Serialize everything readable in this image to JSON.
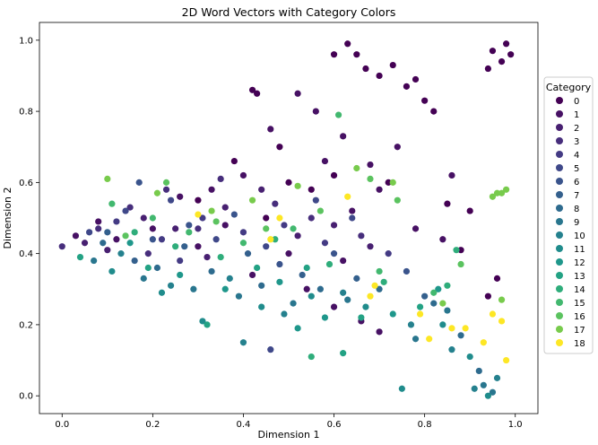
{
  "chart_data": {
    "type": "scatter",
    "title": "2D Word Vectors with Category Colors",
    "xlabel": "Dimension 1",
    "ylabel": "Dimension 2",
    "xlim": [
      -0.05,
      1.05
    ],
    "ylim": [
      -0.05,
      1.05
    ],
    "xticks": [
      "0.0",
      "0.2",
      "0.4",
      "0.6",
      "0.8",
      "1.0"
    ],
    "yticks": [
      "0.0",
      "0.2",
      "0.4",
      "0.6",
      "0.8",
      "1.0"
    ],
    "grid": false,
    "legend": {
      "title": "Category",
      "placement": "right-outside",
      "entries": [
        "0",
        "1",
        "2",
        "3",
        "4",
        "5",
        "6",
        "7",
        "8",
        "9",
        "10",
        "11",
        "12",
        "13",
        "14",
        "15",
        "16",
        "17",
        "18"
      ]
    },
    "colormap": [
      "#440154",
      "#471164",
      "#482071",
      "#472e7c",
      "#443b84",
      "#3f4889",
      "#3a548c",
      "#34608d",
      "#2e6b8e",
      "#29768e",
      "#25818e",
      "#208c8c",
      "#1f978b",
      "#23a284",
      "#2fad7b",
      "#42b86f",
      "#5bc35f",
      "#78cb4c",
      "#fde725"
    ],
    "series": [
      {
        "name": "0",
        "points": [
          [
            0.42,
            0.86
          ],
          [
            0.43,
            0.85
          ],
          [
            0.6,
            0.96
          ],
          [
            0.63,
            0.99
          ],
          [
            0.65,
            0.96
          ],
          [
            0.67,
            0.92
          ],
          [
            0.7,
            0.9
          ],
          [
            0.73,
            0.93
          ],
          [
            0.76,
            0.87
          ],
          [
            0.78,
            0.89
          ],
          [
            0.8,
            0.83
          ],
          [
            0.82,
            0.8
          ],
          [
            0.95,
            0.97
          ],
          [
            0.97,
            0.94
          ],
          [
            0.98,
            0.99
          ],
          [
            0.99,
            0.96
          ],
          [
            0.94,
            0.92
          ],
          [
            0.6,
            0.62
          ],
          [
            0.55,
            0.58
          ],
          [
            0.5,
            0.6
          ],
          [
            0.45,
            0.5
          ],
          [
            0.38,
            0.66
          ],
          [
            0.3,
            0.55
          ],
          [
            0.72,
            0.6
          ],
          [
            0.48,
            0.7
          ],
          [
            0.85,
            0.54
          ],
          [
            0.9,
            0.52
          ],
          [
            0.94,
            0.28
          ],
          [
            0.96,
            0.33
          ],
          [
            0.88,
            0.41
          ]
        ]
      },
      {
        "name": "1",
        "points": [
          [
            0.4,
            0.62
          ],
          [
            0.33,
            0.58
          ],
          [
            0.26,
            0.56
          ],
          [
            0.58,
            0.66
          ],
          [
            0.62,
            0.73
          ],
          [
            0.56,
            0.8
          ],
          [
            0.52,
            0.85
          ],
          [
            0.46,
            0.75
          ],
          [
            0.68,
            0.65
          ],
          [
            0.74,
            0.7
          ],
          [
            0.64,
            0.52
          ],
          [
            0.36,
            0.48
          ],
          [
            0.2,
            0.47
          ],
          [
            0.12,
            0.44
          ],
          [
            0.08,
            0.49
          ],
          [
            0.03,
            0.45
          ],
          [
            0.78,
            0.47
          ],
          [
            0.84,
            0.44
          ],
          [
            0.86,
            0.62
          ],
          [
            0.7,
            0.58
          ],
          [
            0.5,
            0.4
          ],
          [
            0.54,
            0.3
          ],
          [
            0.6,
            0.25
          ],
          [
            0.66,
            0.21
          ],
          [
            0.7,
            0.18
          ],
          [
            0.62,
            0.38
          ],
          [
            0.42,
            0.34
          ],
          [
            0.3,
            0.42
          ]
        ]
      },
      {
        "name": "2",
        "points": [
          [
            0.18,
            0.5
          ],
          [
            0.25,
            0.47
          ],
          [
            0.36,
            0.53
          ],
          [
            0.44,
            0.58
          ],
          [
            0.52,
            0.45
          ],
          [
            0.6,
            0.48
          ],
          [
            0.68,
            0.42
          ],
          [
            0.1,
            0.41
          ],
          [
            0.05,
            0.43
          ],
          [
            0.32,
            0.39
          ]
        ]
      },
      {
        "name": "3",
        "points": [
          [
            0.0,
            0.42
          ],
          [
            0.08,
            0.47
          ],
          [
            0.15,
            0.53
          ],
          [
            0.23,
            0.58
          ],
          [
            0.35,
            0.61
          ],
          [
            0.47,
            0.54
          ],
          [
            0.55,
            0.5
          ],
          [
            0.66,
            0.45
          ],
          [
            0.3,
            0.47
          ],
          [
            0.19,
            0.4
          ]
        ]
      },
      {
        "name": "4",
        "points": [
          [
            0.12,
            0.49
          ],
          [
            0.22,
            0.44
          ],
          [
            0.31,
            0.5
          ],
          [
            0.4,
            0.46
          ],
          [
            0.49,
            0.48
          ],
          [
            0.58,
            0.43
          ],
          [
            0.72,
            0.4
          ],
          [
            0.26,
            0.38
          ]
        ]
      },
      {
        "name": "5",
        "points": [
          [
            0.06,
            0.46
          ],
          [
            0.14,
            0.52
          ],
          [
            0.24,
            0.55
          ],
          [
            0.34,
            0.44
          ],
          [
            0.45,
            0.42
          ],
          [
            0.56,
            0.55
          ],
          [
            0.64,
            0.5
          ],
          [
            0.46,
            0.13
          ]
        ]
      },
      {
        "name": "6",
        "points": [
          [
            0.17,
            0.6
          ],
          [
            0.2,
            0.44
          ],
          [
            0.28,
            0.48
          ],
          [
            0.38,
            0.51
          ],
          [
            0.48,
            0.37
          ],
          [
            0.6,
            0.4
          ],
          [
            0.76,
            0.35
          ]
        ]
      },
      {
        "name": "7",
        "points": [
          [
            0.1,
            0.46
          ],
          [
            0.16,
            0.38
          ],
          [
            0.27,
            0.42
          ],
          [
            0.41,
            0.4
          ],
          [
            0.53,
            0.34
          ],
          [
            0.65,
            0.33
          ],
          [
            0.8,
            0.28
          ]
        ]
      },
      {
        "name": "8",
        "points": [
          [
            0.09,
            0.43
          ],
          [
            0.21,
            0.36
          ],
          [
            0.33,
            0.35
          ],
          [
            0.44,
            0.31
          ],
          [
            0.57,
            0.3
          ],
          [
            0.7,
            0.3
          ],
          [
            0.82,
            0.26
          ],
          [
            0.88,
            0.17
          ],
          [
            0.92,
            0.07
          ]
        ]
      },
      {
        "name": "9",
        "points": [
          [
            0.07,
            0.38
          ],
          [
            0.18,
            0.33
          ],
          [
            0.29,
            0.3
          ],
          [
            0.39,
            0.28
          ],
          [
            0.51,
            0.26
          ],
          [
            0.63,
            0.27
          ],
          [
            0.78,
            0.16
          ],
          [
            0.85,
            0.24
          ],
          [
            0.93,
            0.03
          ],
          [
            0.95,
            0.01
          ]
        ]
      },
      {
        "name": "10",
        "points": [
          [
            0.13,
            0.4
          ],
          [
            0.24,
            0.31
          ],
          [
            0.37,
            0.33
          ],
          [
            0.49,
            0.23
          ],
          [
            0.62,
            0.29
          ],
          [
            0.77,
            0.2
          ],
          [
            0.86,
            0.13
          ],
          [
            0.91,
            0.02
          ],
          [
            0.96,
            0.05
          ],
          [
            0.4,
            0.15
          ]
        ]
      },
      {
        "name": "11",
        "points": [
          [
            0.11,
            0.35
          ],
          [
            0.22,
            0.29
          ],
          [
            0.31,
            0.21
          ],
          [
            0.44,
            0.25
          ],
          [
            0.55,
            0.28
          ],
          [
            0.67,
            0.25
          ],
          [
            0.75,
            0.02
          ],
          [
            0.84,
            0.2
          ],
          [
            0.9,
            0.11
          ],
          [
            0.94,
            0.0
          ]
        ]
      },
      {
        "name": "12",
        "points": [
          [
            0.15,
            0.43
          ],
          [
            0.26,
            0.34
          ],
          [
            0.36,
            0.3
          ],
          [
            0.48,
            0.32
          ],
          [
            0.58,
            0.22
          ],
          [
            0.73,
            0.23
          ],
          [
            0.83,
            0.3
          ],
          [
            0.52,
            0.19
          ]
        ]
      },
      {
        "name": "13",
        "points": [
          [
            0.04,
            0.39
          ],
          [
            0.19,
            0.36
          ],
          [
            0.32,
            0.2
          ],
          [
            0.43,
            0.36
          ],
          [
            0.54,
            0.36
          ],
          [
            0.66,
            0.22
          ],
          [
            0.79,
            0.25
          ],
          [
            0.62,
            0.12
          ]
        ]
      },
      {
        "name": "14",
        "points": [
          [
            0.16,
            0.46
          ],
          [
            0.25,
            0.42
          ],
          [
            0.35,
            0.39
          ],
          [
            0.47,
            0.44
          ],
          [
            0.59,
            0.37
          ],
          [
            0.71,
            0.32
          ],
          [
            0.85,
            0.31
          ],
          [
            0.87,
            0.41
          ],
          [
            0.55,
            0.11
          ]
        ]
      },
      {
        "name": "15",
        "points": [
          [
            0.11,
            0.54
          ],
          [
            0.2,
            0.5
          ],
          [
            0.28,
            0.46
          ],
          [
            0.4,
            0.43
          ],
          [
            0.51,
            0.47
          ],
          [
            0.61,
            0.79
          ],
          [
            0.7,
            0.35
          ],
          [
            0.82,
            0.29
          ]
        ]
      },
      {
        "name": "16",
        "points": [
          [
            0.14,
            0.45
          ],
          [
            0.23,
            0.6
          ],
          [
            0.34,
            0.49
          ],
          [
            0.45,
            0.47
          ],
          [
            0.57,
            0.52
          ],
          [
            0.68,
            0.61
          ],
          [
            0.74,
            0.55
          ],
          [
            0.88,
            0.37
          ]
        ]
      },
      {
        "name": "17",
        "points": [
          [
            0.1,
            0.61
          ],
          [
            0.21,
            0.57
          ],
          [
            0.33,
            0.52
          ],
          [
            0.42,
            0.55
          ],
          [
            0.52,
            0.59
          ],
          [
            0.65,
            0.64
          ],
          [
            0.73,
            0.6
          ],
          [
            0.96,
            0.57
          ],
          [
            0.97,
            0.57
          ],
          [
            0.98,
            0.58
          ],
          [
            0.95,
            0.56
          ],
          [
            0.84,
            0.26
          ],
          [
            0.97,
            0.27
          ]
        ]
      },
      {
        "name": "18",
        "points": [
          [
            0.3,
            0.51
          ],
          [
            0.48,
            0.5
          ],
          [
            0.63,
            0.56
          ],
          [
            0.69,
            0.31
          ],
          [
            0.79,
            0.23
          ],
          [
            0.81,
            0.16
          ],
          [
            0.86,
            0.19
          ],
          [
            0.93,
            0.15
          ],
          [
            0.95,
            0.23
          ],
          [
            0.97,
            0.21
          ],
          [
            0.98,
            0.1
          ],
          [
            0.89,
            0.19
          ],
          [
            0.68,
            0.28
          ],
          [
            0.46,
            0.44
          ]
        ]
      }
    ]
  }
}
